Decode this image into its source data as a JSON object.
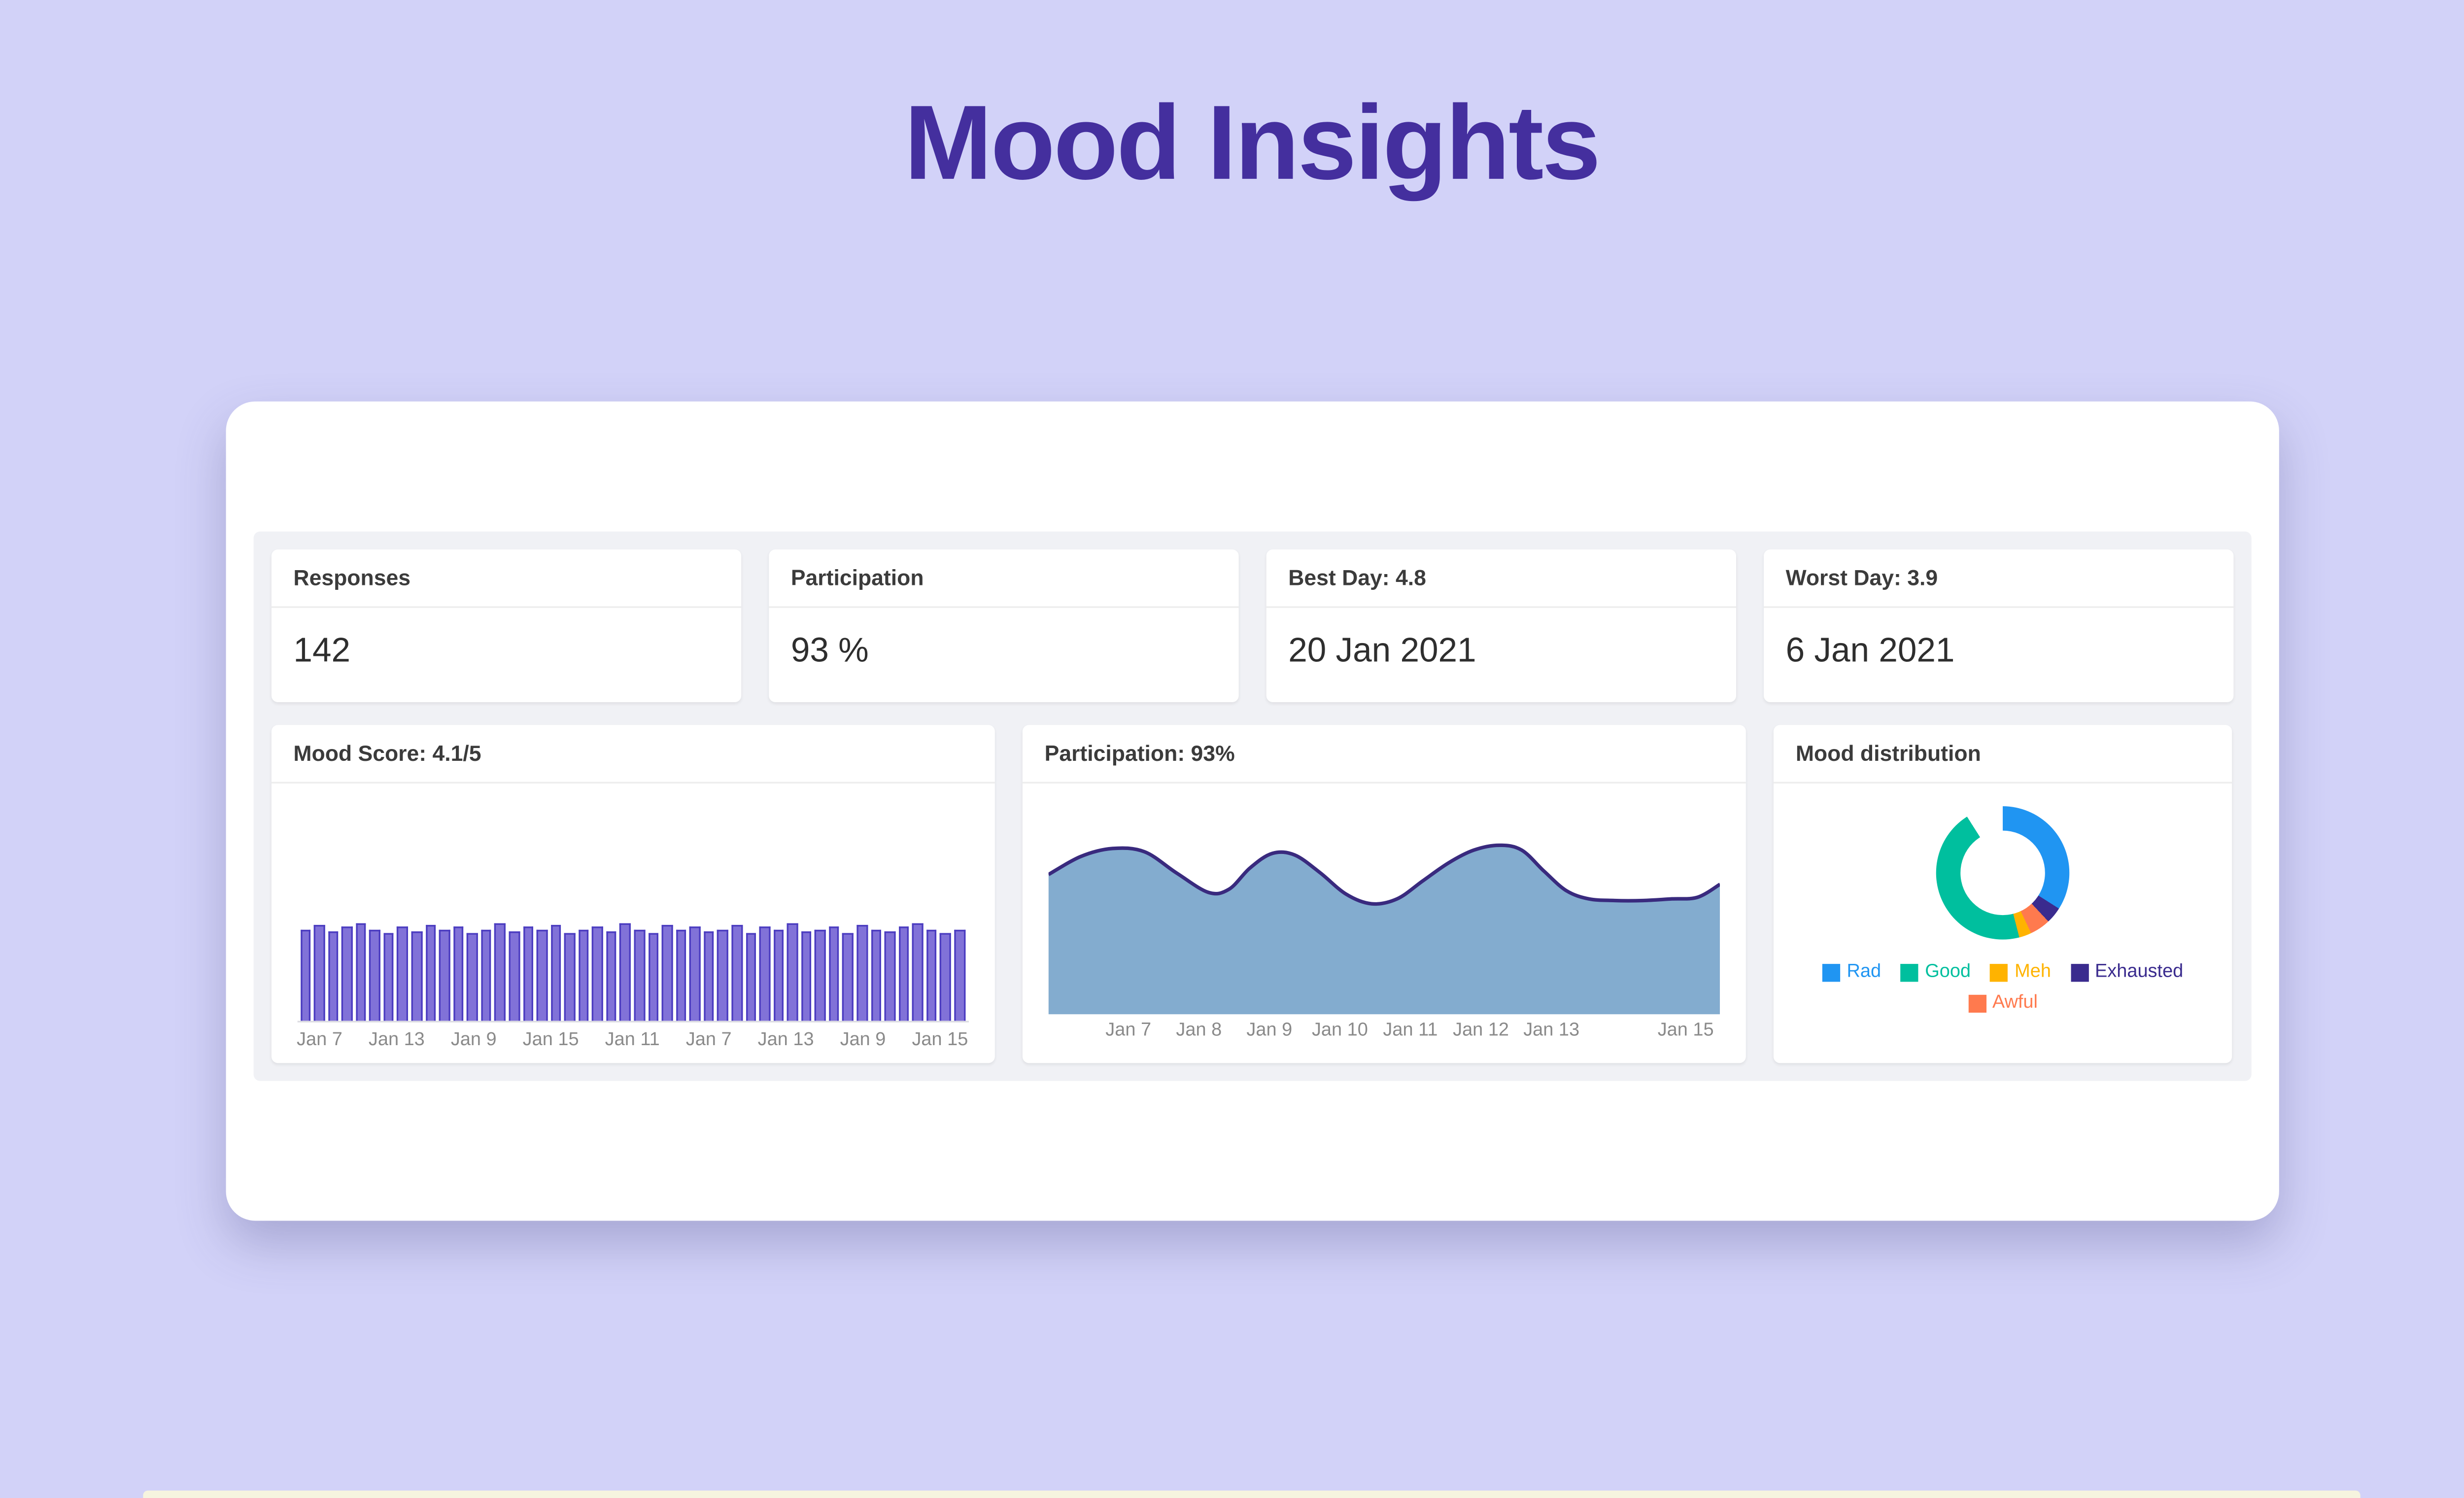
{
  "page": {
    "title": "Mood Insights"
  },
  "colors": {
    "background": "#d2d2f8",
    "title": "#442f9e",
    "panel": "#f0f1f5",
    "bar_fill": "#8172d8",
    "bar_border": "#4b3cc0",
    "area_fill": "#83accf",
    "area_line": "#392a7e"
  },
  "stats": [
    {
      "label": "Responses",
      "value": "142"
    },
    {
      "label": "Participation",
      "value": "93 %"
    },
    {
      "label": "Best Day: 4.8",
      "value": "20 Jan 2021"
    },
    {
      "label": "Worst Day: 3.9",
      "value": "6 Jan 2021"
    }
  ],
  "chart_data": [
    {
      "type": "bar",
      "title": "Mood Score: 4.1/5",
      "ylim": [
        0,
        5
      ],
      "tick_labels": [
        "Jan 7",
        "Jan 13",
        "Jan 9",
        "Jan 15",
        "Jan 11",
        "Jan 7",
        "Jan 13",
        "Jan 9",
        "Jan 15"
      ],
      "values": [
        4.2,
        4.4,
        4.1,
        4.3,
        4.5,
        4.2,
        4.0,
        4.3,
        4.1,
        4.4,
        4.2,
        4.3,
        4.0,
        4.2,
        4.5,
        4.1,
        4.3,
        4.2,
        4.4,
        4.0,
        4.2,
        4.3,
        4.1,
        4.5,
        4.2,
        4.0,
        4.4,
        4.2,
        4.3,
        4.1,
        4.2,
        4.4,
        4.0,
        4.3,
        4.2,
        4.5,
        4.1,
        4.2,
        4.3,
        4.0,
        4.4,
        4.2,
        4.1,
        4.3,
        4.5,
        4.2,
        4.0,
        4.2
      ],
      "bar_color": "#8172d8",
      "bar_border_color": "#4b3cc0"
    },
    {
      "type": "area",
      "title": "Participation: 93%",
      "x_labels": [
        {
          "label": "Jan 7",
          "pos": 12
        },
        {
          "label": "Jan 8",
          "pos": 22.5
        },
        {
          "label": "Jan 9",
          "pos": 33
        },
        {
          "label": "Jan 10",
          "pos": 43.5
        },
        {
          "label": "Jan 11",
          "pos": 54
        },
        {
          "label": "Jan 12",
          "pos": 64.5
        },
        {
          "label": "Jan 13",
          "pos": 75
        },
        {
          "label": "Jan 15",
          "pos": 95
        }
      ],
      "points": [
        [
          0,
          26
        ],
        [
          20,
          15
        ],
        [
          40,
          10
        ],
        [
          60,
          12
        ],
        [
          80,
          25
        ],
        [
          100,
          37
        ],
        [
          113,
          35
        ],
        [
          126,
          22
        ],
        [
          140,
          13
        ],
        [
          154,
          14
        ],
        [
          170,
          25
        ],
        [
          186,
          38
        ],
        [
          202,
          44
        ],
        [
          218,
          41
        ],
        [
          234,
          30
        ],
        [
          250,
          19
        ],
        [
          266,
          11
        ],
        [
          282,
          8
        ],
        [
          296,
          11
        ],
        [
          310,
          24
        ],
        [
          324,
          36
        ],
        [
          338,
          41
        ],
        [
          354,
          42
        ],
        [
          372,
          42
        ],
        [
          390,
          41
        ],
        [
          406,
          40
        ],
        [
          420,
          32
        ]
      ],
      "line_color": "#392a7e",
      "fill_color": "#83accf"
    },
    {
      "type": "donut",
      "title": "Mood distribution",
      "segments": [
        {
          "label": "Rad",
          "color": "#2095f2",
          "value": 34
        },
        {
          "label": "Good",
          "color": "#00bf9e",
          "value": 45
        },
        {
          "label": "Meh",
          "color": "#ffb300",
          "value": 3
        },
        {
          "label": "Exhausted",
          "color": "#3a2b8e",
          "value": 4
        },
        {
          "label": "Awful",
          "color": "#ff7a4e",
          "value": 5
        }
      ],
      "draw_segments": [
        {
          "color": "#2095f2",
          "pct": 34
        },
        {
          "color": "#3a2b8e",
          "pct": 4
        },
        {
          "color": "#ff7a4e",
          "pct": 5
        },
        {
          "color": "#ffb300",
          "pct": 3
        },
        {
          "color": "#00bf9e",
          "pct": 45
        },
        {
          "color": "#ffffff",
          "pct": 9
        }
      ],
      "legend_position": "bottom"
    }
  ]
}
